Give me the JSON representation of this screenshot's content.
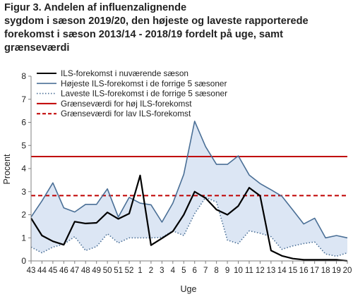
{
  "title": "Figur 3. Andelen af influenzalignende\nsygdom i sæson 2019/20, den højeste og laveste rapporterede\nforekomst i sæson 2013/14 - 2018/19 fordelt på uge, samt\ngrænseværdi",
  "chart_data": {
    "type": "line",
    "xlabel": "Uge",
    "ylabel": "Procent",
    "ylim": [
      0,
      8
    ],
    "yticks": [
      0,
      1,
      2,
      3,
      4,
      5,
      6,
      7,
      8
    ],
    "grid": false,
    "legend_position": "top-inside",
    "categories": [
      "43",
      "44",
      "45",
      "46",
      "47",
      "48",
      "49",
      "50",
      "51",
      "52",
      "1",
      "2",
      "3",
      "4",
      "5",
      "6",
      "7",
      "8",
      "9",
      "10",
      "11",
      "12",
      "13",
      "14",
      "15",
      "16",
      "17",
      "18",
      "19",
      "20"
    ],
    "series": [
      {
        "name": "ILS-forekomst i nuværende sæson",
        "color": "#000000",
        "style": "solid",
        "values": [
          1.85,
          1.1,
          0.85,
          0.7,
          1.7,
          1.62,
          1.65,
          2.1,
          1.82,
          2.05,
          3.7,
          0.68,
          0.98,
          1.28,
          2.0,
          3.0,
          2.72,
          2.22,
          2.0,
          2.38,
          3.17,
          2.82,
          0.45,
          0.22,
          0.1,
          0.05,
          0.05,
          0.05,
          0.05,
          0.0
        ]
      },
      {
        "name": "Højeste ILS-forekomst i de forrige 5 sæsoner",
        "color": "#4a6f96",
        "style": "solid",
        "values": [
          1.9,
          2.6,
          3.38,
          2.3,
          2.12,
          2.45,
          2.45,
          3.12,
          1.9,
          2.75,
          2.5,
          2.43,
          1.68,
          2.5,
          3.75,
          6.05,
          4.95,
          4.18,
          4.18,
          4.55,
          3.72,
          3.35,
          3.08,
          2.8,
          2.2,
          1.6,
          1.85,
          1.0,
          1.1,
          1.0
        ]
      },
      {
        "name": "Laveste ILS-forekomst i de forrige 5 sæsoner",
        "color": "#4a6f96",
        "style": "dotted",
        "values": [
          0.6,
          0.35,
          0.6,
          0.72,
          1.05,
          0.45,
          0.62,
          1.18,
          0.78,
          1.0,
          1.0,
          1.0,
          1.02,
          1.3,
          1.1,
          2.05,
          2.75,
          2.55,
          0.9,
          0.75,
          1.3,
          1.2,
          1.05,
          0.5,
          0.65,
          0.75,
          0.82,
          0.3,
          0.2,
          0.35
        ]
      },
      {
        "name": "Grænseværdi for høj ILS-forekomst",
        "color": "#c00000",
        "style": "solid",
        "constant": 4.52
      },
      {
        "name": "Grænseværdi for lav ILS-forekomst",
        "color": "#c00000",
        "style": "dashed",
        "constant": 2.83
      }
    ],
    "band_fill": "#dce6f4"
  }
}
